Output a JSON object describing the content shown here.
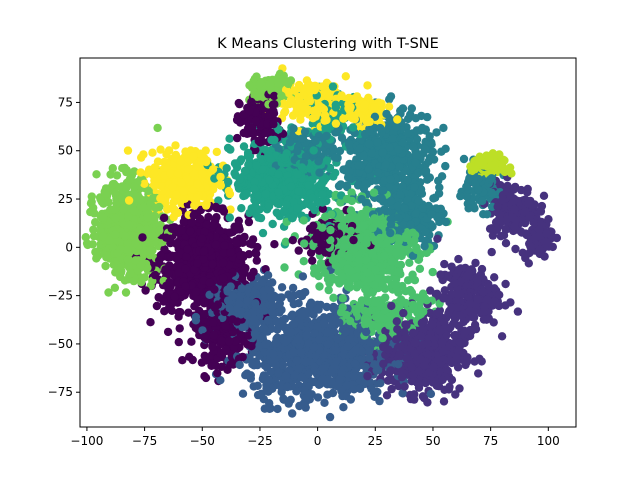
{
  "chart_data": {
    "type": "scatter",
    "title": "K Means Clustering with T-SNE",
    "xlabel": "",
    "ylabel": "",
    "xlim": [
      -103,
      112
    ],
    "ylim": [
      -93,
      98
    ],
    "xticks": [
      -100,
      -75,
      -50,
      -25,
      0,
      25,
      50,
      75,
      100
    ],
    "yticks": [
      -75,
      -50,
      -25,
      0,
      25,
      50,
      75
    ],
    "grid": false,
    "legend": "none",
    "colors": [
      "#440154",
      "#46327e",
      "#365c8d",
      "#277f8e",
      "#1fa187",
      "#4ac16d",
      "#7ad151",
      "#bddf26",
      "#fde725"
    ],
    "clusters": [
      {
        "color_index": 0,
        "regions": [
          {
            "x": -50,
            "y": -8,
            "rx": 18,
            "ry": 22,
            "n": 800
          },
          {
            "x": -25,
            "y": 65,
            "rx": 8,
            "ry": 12,
            "n": 140
          },
          {
            "x": -40,
            "y": -45,
            "rx": 12,
            "ry": 14,
            "n": 200
          },
          {
            "x": 5,
            "y": 5,
            "rx": 12,
            "ry": 10,
            "n": 120
          }
        ]
      },
      {
        "color_index": 1,
        "regions": [
          {
            "x": 45,
            "y": -55,
            "rx": 16,
            "ry": 18,
            "n": 500
          },
          {
            "x": 85,
            "y": 20,
            "rx": 10,
            "ry": 12,
            "n": 150
          },
          {
            "x": 95,
            "y": 5,
            "rx": 6,
            "ry": 8,
            "n": 80
          },
          {
            "x": 65,
            "y": -25,
            "rx": 12,
            "ry": 15,
            "n": 220
          }
        ]
      },
      {
        "color_index": 2,
        "regions": [
          {
            "x": 0,
            "y": -55,
            "rx": 28,
            "ry": 22,
            "n": 900
          },
          {
            "x": -30,
            "y": -30,
            "rx": 15,
            "ry": 12,
            "n": 250
          }
        ]
      },
      {
        "color_index": 3,
        "regions": [
          {
            "x": 30,
            "y": 45,
            "rx": 18,
            "ry": 22,
            "n": 500
          },
          {
            "x": 40,
            "y": 15,
            "rx": 12,
            "ry": 12,
            "n": 200
          },
          {
            "x": 70,
            "y": 30,
            "rx": 8,
            "ry": 10,
            "n": 100
          },
          {
            "x": -5,
            "y": 50,
            "rx": 10,
            "ry": 8,
            "n": 150
          }
        ]
      },
      {
        "color_index": 4,
        "regions": [
          {
            "x": -15,
            "y": 35,
            "rx": 20,
            "ry": 18,
            "n": 550
          },
          {
            "x": 5,
            "y": 70,
            "rx": 10,
            "ry": 10,
            "n": 120
          }
        ]
      },
      {
        "color_index": 5,
        "regions": [
          {
            "x": 20,
            "y": 0,
            "rx": 20,
            "ry": 20,
            "n": 600
          },
          {
            "x": 30,
            "y": -35,
            "rx": 15,
            "ry": 12,
            "n": 220
          }
        ]
      },
      {
        "color_index": 6,
        "regions": [
          {
            "x": -82,
            "y": 10,
            "rx": 12,
            "ry": 22,
            "n": 700
          },
          {
            "x": -20,
            "y": 82,
            "rx": 8,
            "ry": 6,
            "n": 100
          }
        ]
      },
      {
        "color_index": 7,
        "regions": [
          {
            "x": 74,
            "y": 42,
            "rx": 6,
            "ry": 5,
            "n": 150
          }
        ]
      },
      {
        "color_index": 8,
        "regions": [
          {
            "x": -58,
            "y": 35,
            "rx": 13,
            "ry": 13,
            "n": 450
          },
          {
            "x": 0,
            "y": 75,
            "rx": 14,
            "ry": 9,
            "n": 220
          },
          {
            "x": 20,
            "y": 70,
            "rx": 8,
            "ry": 7,
            "n": 120
          }
        ]
      }
    ]
  }
}
